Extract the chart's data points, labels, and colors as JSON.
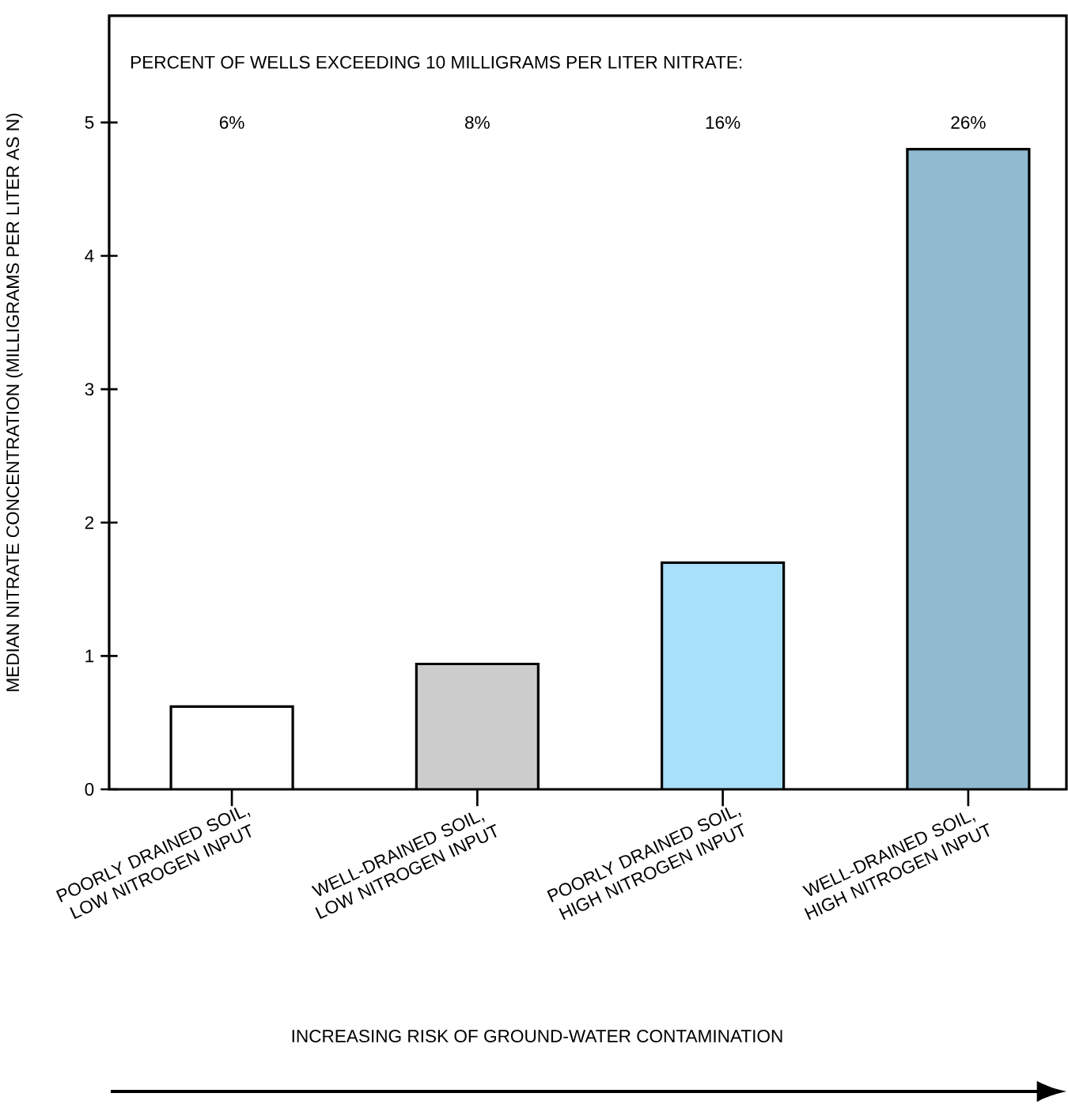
{
  "chart_data": {
    "type": "bar",
    "categories": [
      "POORLY DRAINED SOIL, LOW NITROGEN INPUT",
      "WELL-DRAINED SOIL, LOW NITROGEN INPUT",
      "POORLY DRAINED SOIL, HIGH NITROGEN INPUT",
      "WELL-DRAINED SOIL, HIGH NITROGEN INPUT"
    ],
    "values": [
      0.62,
      0.94,
      1.7,
      4.8
    ],
    "colors": [
      "#ffffff",
      "#cccccc",
      "#a8e0fa",
      "#8fbad0"
    ],
    "ylabel": "MEDIAN NITRATE CONCENTRATION (MILLIGRAMS PER LITER AS N)",
    "annotations": [
      "PERCENT OF WELLS EXCEEDING 10 MILLIGRAMS PER LITER NITRATE:",
      "6%",
      "8%",
      "16%",
      "26%",
      "INCREASING RISK OF GROUND-WATER CONTAMINATION"
    ],
    "ylim": [
      0,
      5.8
    ],
    "yticks": [
      0,
      1,
      2,
      3,
      4,
      5
    ],
    "grid": false
  }
}
